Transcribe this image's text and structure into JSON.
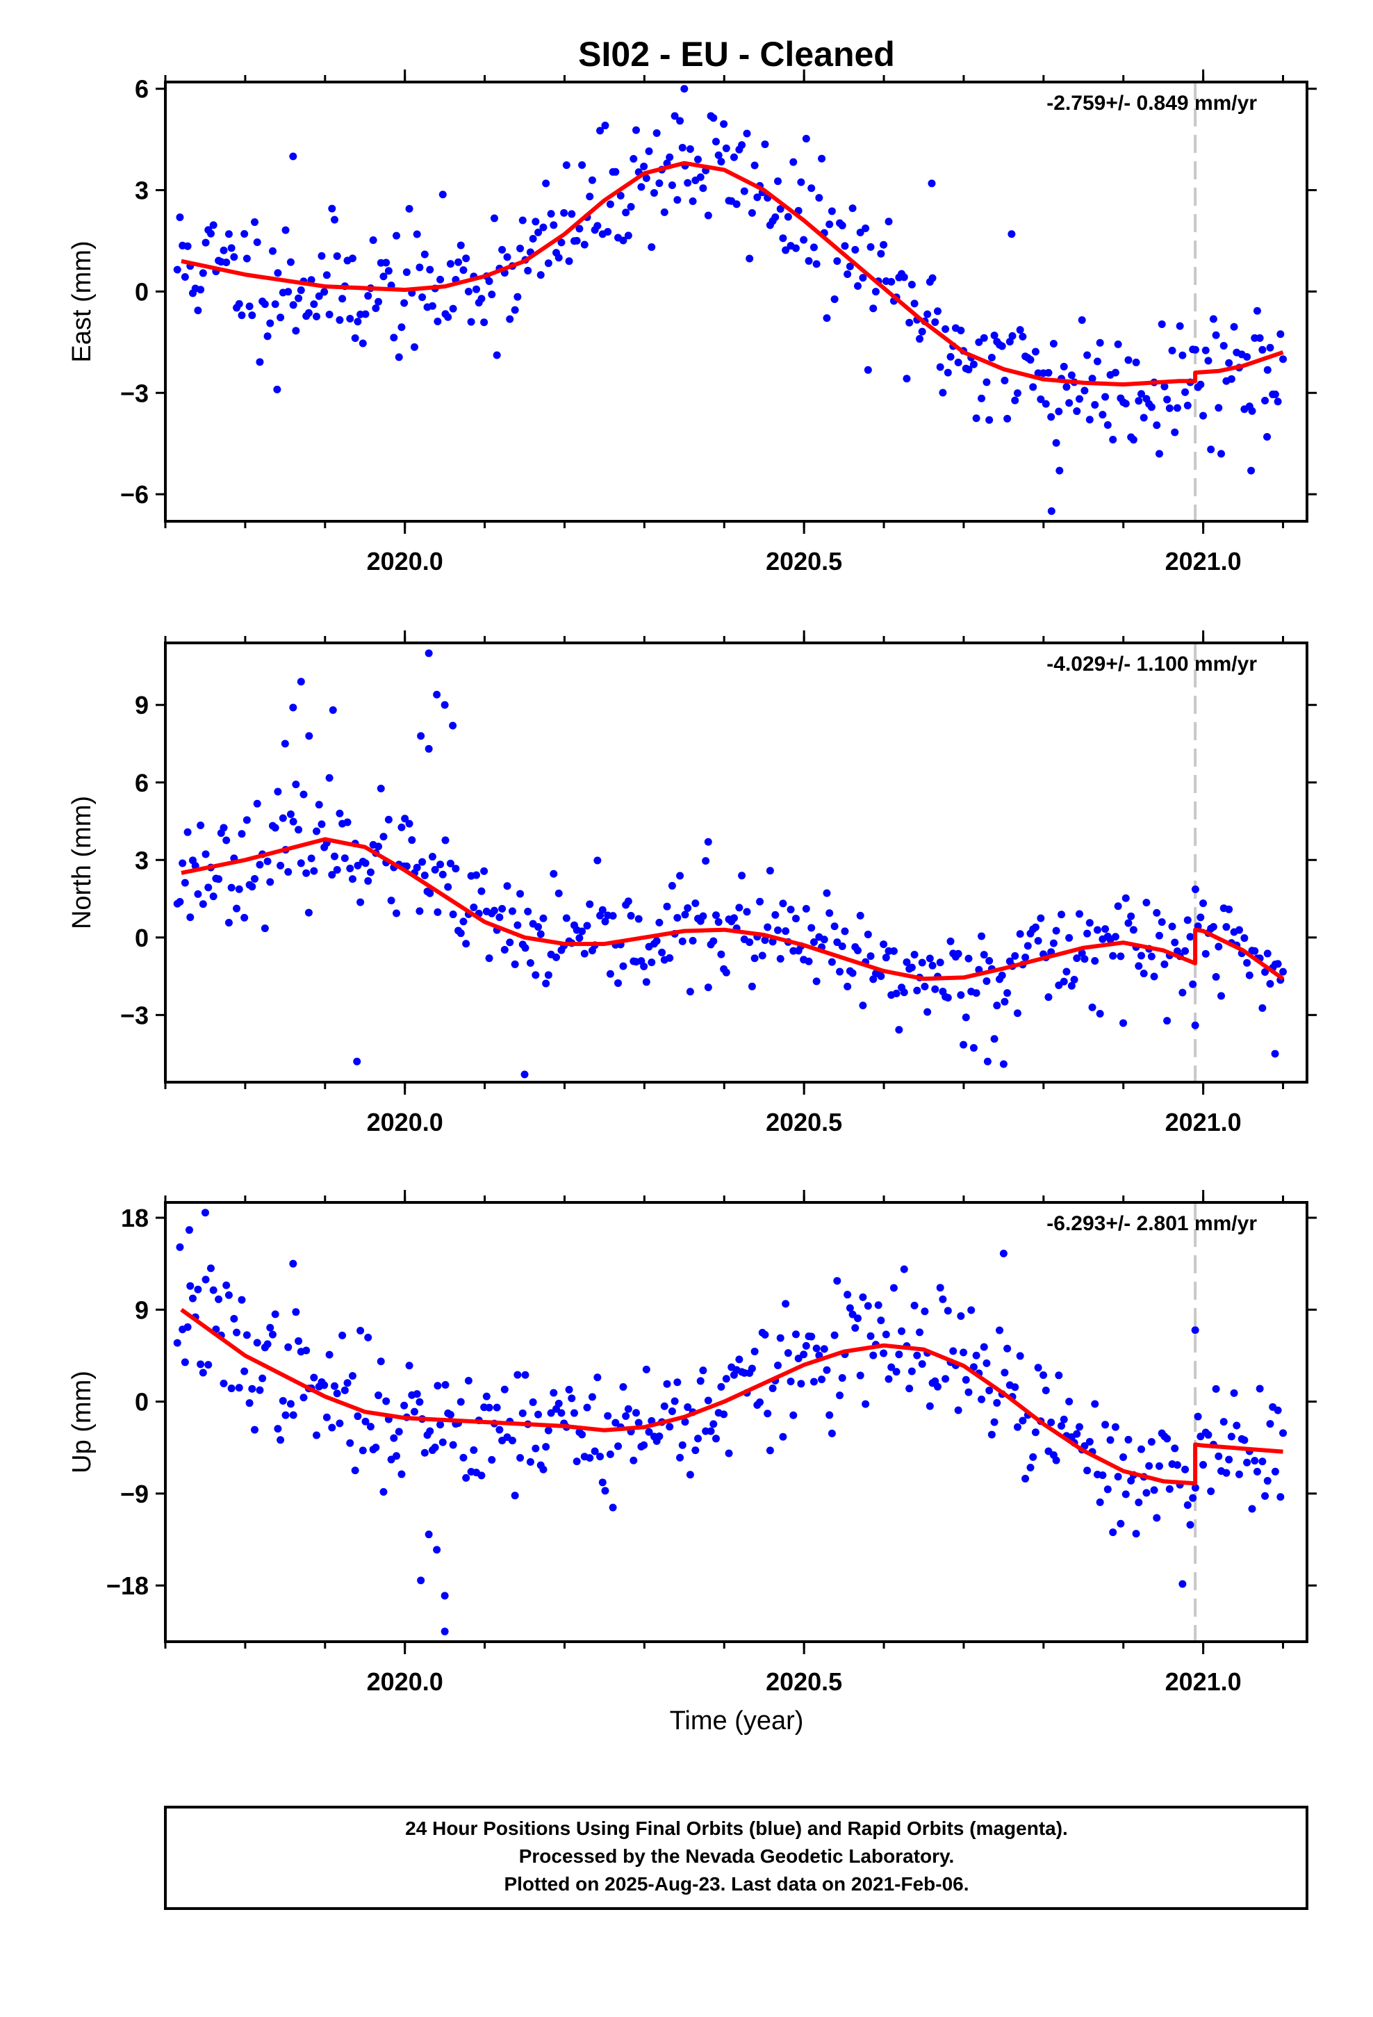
{
  "title": "SI02  - EU - Cleaned",
  "xlabel": "Time (year)",
  "colors": {
    "final": "#0000ff",
    "model": "#ff0000",
    "break": "#c8c8c8",
    "frame": "#000000"
  },
  "footer": {
    "line1": "24 Hour Positions Using Final Orbits (blue) and Rapid Orbits (magenta).",
    "line2": "Processed by the Nevada Geodetic Laboratory.",
    "line3": "Plotted on 2025-Aug-23. Last data on 2021-Feb-06."
  },
  "chart_data": [
    {
      "type": "scatter",
      "name": "east",
      "ylabel": "East (mm)",
      "rate": "-2.759+/- 0.849 mm/yr",
      "xlim": [
        2019.7,
        2021.13
      ],
      "ylim": [
        -6.8,
        6.2
      ],
      "xticks": [
        2020.0,
        2020.5,
        2021.0
      ],
      "xtick_labels": [
        "2020.0",
        "2020.5",
        "2021.0"
      ],
      "yticks": [
        6,
        3,
        0,
        -3,
        -6
      ],
      "ytick_labels": [
        "6",
        "3",
        "0",
        "−3",
        "−6"
      ],
      "break_x": 2020.99,
      "scatter_seed": 11,
      "scatter_sd": 1.0,
      "model": [
        [
          2019.72,
          0.9
        ],
        [
          2019.8,
          0.5
        ],
        [
          2019.9,
          0.15
        ],
        [
          2020.0,
          0.05
        ],
        [
          2020.05,
          0.15
        ],
        [
          2020.1,
          0.45
        ],
        [
          2020.15,
          0.9
        ],
        [
          2020.2,
          1.7
        ],
        [
          2020.25,
          2.7
        ],
        [
          2020.3,
          3.5
        ],
        [
          2020.35,
          3.8
        ],
        [
          2020.4,
          3.6
        ],
        [
          2020.45,
          3.0
        ],
        [
          2020.5,
          2.1
        ],
        [
          2020.55,
          1.1
        ],
        [
          2020.6,
          0.1
        ],
        [
          2020.65,
          -0.9
        ],
        [
          2020.7,
          -1.8
        ],
        [
          2020.75,
          -2.3
        ],
        [
          2020.8,
          -2.6
        ],
        [
          2020.85,
          -2.7
        ],
        [
          2020.9,
          -2.75
        ],
        [
          2020.97,
          -2.65
        ],
        [
          2020.99,
          -2.65
        ],
        [
          2020.99,
          -2.4
        ],
        [
          2021.02,
          -2.35
        ],
        [
          2021.05,
          -2.2
        ],
        [
          2021.1,
          -1.8
        ]
      ],
      "outliers": [
        [
          2019.86,
          4.0
        ],
        [
          2019.84,
          -2.9
        ],
        [
          2020.35,
          6.0
        ],
        [
          2020.66,
          3.2
        ],
        [
          2020.76,
          1.7
        ],
        [
          2020.81,
          -6.5
        ],
        [
          2020.82,
          -5.3
        ],
        [
          2021.06,
          -5.3
        ],
        [
          2021.08,
          -4.3
        ]
      ]
    },
    {
      "type": "scatter",
      "name": "north",
      "ylabel": "North (mm)",
      "rate": "-4.029+/- 1.100 mm/yr",
      "xlim": [
        2019.7,
        2021.13
      ],
      "ylim": [
        -5.6,
        11.4
      ],
      "xticks": [
        2020.0,
        2020.5,
        2021.0
      ],
      "xtick_labels": [
        "2020.0",
        "2020.5",
        "2021.0"
      ],
      "yticks": [
        9,
        6,
        3,
        0,
        -3
      ],
      "ytick_labels": [
        "9",
        "6",
        "3",
        "0",
        "−3"
      ],
      "break_x": 2020.99,
      "scatter_seed": 23,
      "scatter_sd": 1.05,
      "model": [
        [
          2019.72,
          2.5
        ],
        [
          2019.8,
          3.0
        ],
        [
          2019.9,
          3.8
        ],
        [
          2019.95,
          3.5
        ],
        [
          2020.0,
          2.6
        ],
        [
          2020.05,
          1.6
        ],
        [
          2020.1,
          0.6
        ],
        [
          2020.15,
          0.0
        ],
        [
          2020.2,
          -0.25
        ],
        [
          2020.25,
          -0.25
        ],
        [
          2020.3,
          0.0
        ],
        [
          2020.35,
          0.25
        ],
        [
          2020.4,
          0.3
        ],
        [
          2020.45,
          0.1
        ],
        [
          2020.5,
          -0.3
        ],
        [
          2020.55,
          -0.8
        ],
        [
          2020.6,
          -1.3
        ],
        [
          2020.65,
          -1.6
        ],
        [
          2020.7,
          -1.55
        ],
        [
          2020.75,
          -1.2
        ],
        [
          2020.8,
          -0.8
        ],
        [
          2020.85,
          -0.4
        ],
        [
          2020.9,
          -0.2
        ],
        [
          2020.95,
          -0.5
        ],
        [
          2020.99,
          -1.0
        ],
        [
          2020.99,
          0.3
        ],
        [
          2021.0,
          0.25
        ],
        [
          2021.05,
          -0.5
        ],
        [
          2021.1,
          -1.6
        ]
      ],
      "outliers": [
        [
          2019.87,
          9.9
        ],
        [
          2019.85,
          7.5
        ],
        [
          2019.86,
          8.9
        ],
        [
          2019.91,
          8.8
        ],
        [
          2019.88,
          7.8
        ],
        [
          2019.94,
          -4.8
        ],
        [
          2020.02,
          7.8
        ],
        [
          2020.03,
          11.0
        ],
        [
          2020.04,
          9.4
        ],
        [
          2020.05,
          9.0
        ],
        [
          2020.06,
          8.2
        ],
        [
          2020.03,
          7.3
        ],
        [
          2020.0,
          4.6
        ],
        [
          2020.15,
          -5.3
        ],
        [
          2020.38,
          3.7
        ],
        [
          2020.73,
          -4.8
        ],
        [
          2020.75,
          -4.9
        ],
        [
          2020.99,
          -3.4
        ],
        [
          2021.09,
          -4.5
        ]
      ]
    },
    {
      "type": "scatter",
      "name": "up",
      "ylabel": "Up (mm)",
      "rate": "-6.293+/- 2.801 mm/yr",
      "xlim": [
        2019.7,
        2021.13
      ],
      "ylim": [
        -23.5,
        19.5
      ],
      "xticks": [
        2020.0,
        2020.5,
        2021.0
      ],
      "xtick_labels": [
        "2020.0",
        "2020.5",
        "2021.0"
      ],
      "yticks": [
        18,
        9,
        0,
        -9,
        -18
      ],
      "ytick_labels": [
        "18",
        "9",
        "0",
        "−9",
        "−18"
      ],
      "break_x": 2020.99,
      "scatter_seed": 37,
      "scatter_sd": 3.2,
      "model": [
        [
          2019.72,
          9.0
        ],
        [
          2019.8,
          4.5
        ],
        [
          2019.9,
          0.5
        ],
        [
          2019.95,
          -1.0
        ],
        [
          2020.0,
          -1.6
        ],
        [
          2020.1,
          -2.0
        ],
        [
          2020.2,
          -2.4
        ],
        [
          2020.25,
          -2.8
        ],
        [
          2020.3,
          -2.5
        ],
        [
          2020.35,
          -1.5
        ],
        [
          2020.4,
          0.0
        ],
        [
          2020.45,
          1.8
        ],
        [
          2020.5,
          3.6
        ],
        [
          2020.55,
          4.9
        ],
        [
          2020.6,
          5.5
        ],
        [
          2020.65,
          5.1
        ],
        [
          2020.7,
          3.5
        ],
        [
          2020.75,
          0.8
        ],
        [
          2020.8,
          -2.2
        ],
        [
          2020.85,
          -4.8
        ],
        [
          2020.9,
          -6.8
        ],
        [
          2020.95,
          -7.8
        ],
        [
          2020.99,
          -8.0
        ],
        [
          2020.99,
          -4.2
        ],
        [
          2021.0,
          -4.3
        ],
        [
          2021.05,
          -4.6
        ],
        [
          2021.1,
          -4.9
        ]
      ],
      "outliers": [
        [
          2019.73,
          16.8
        ],
        [
          2019.75,
          18.5
        ],
        [
          2019.86,
          13.5
        ],
        [
          2020.02,
          -17.5
        ],
        [
          2020.03,
          -13.0
        ],
        [
          2020.04,
          -14.5
        ],
        [
          2020.05,
          -22.5
        ],
        [
          2020.05,
          -19.0
        ],
        [
          2020.75,
          14.5
        ],
        [
          2020.99,
          7.0
        ]
      ]
    }
  ]
}
